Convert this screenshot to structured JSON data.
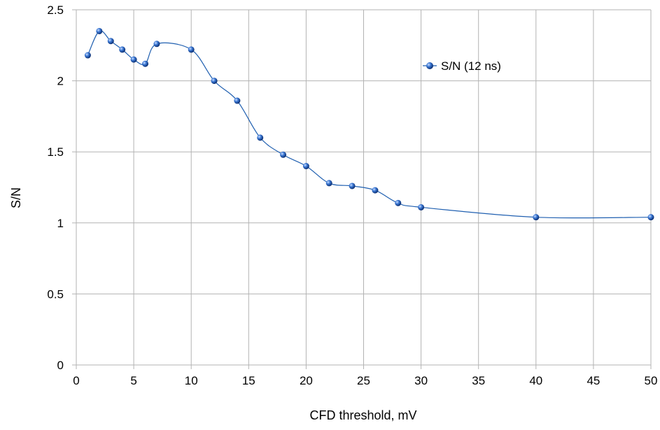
{
  "chart_data": {
    "type": "line",
    "title": "",
    "xlabel": "CFD threshold, mV",
    "ylabel": "S/N",
    "xlim": [
      0,
      50
    ],
    "ylim": [
      0,
      2.5
    ],
    "xticks": [
      "0",
      "5",
      "10",
      "15",
      "20",
      "25",
      "30",
      "35",
      "40",
      "45",
      "50"
    ],
    "yticks": [
      "0",
      "0.5",
      "1",
      "1.5",
      "2",
      "2.5"
    ],
    "grid": true,
    "legend": "top-right",
    "smooth": true,
    "series": [
      {
        "name": "S/N (12 ns)",
        "color": "#1f5fb0",
        "marker": "sphere",
        "x": [
          1,
          2,
          3,
          4,
          5,
          6,
          7,
          10,
          12,
          14,
          16,
          18,
          20,
          22,
          24,
          26,
          28,
          30,
          40,
          50
        ],
        "y": [
          2.18,
          2.35,
          2.28,
          2.22,
          2.15,
          2.12,
          2.26,
          2.22,
          2.0,
          1.86,
          1.6,
          1.48,
          1.4,
          1.28,
          1.26,
          1.23,
          1.14,
          1.11,
          1.04,
          1.04
        ]
      }
    ]
  }
}
